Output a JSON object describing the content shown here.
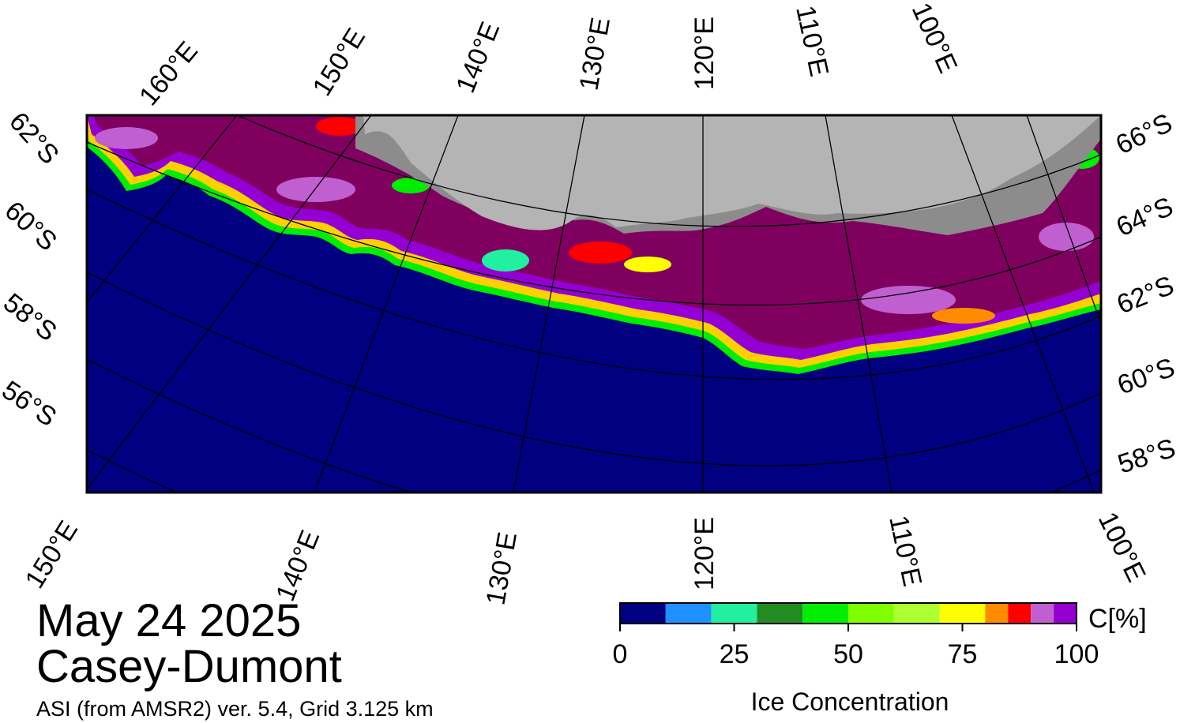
{
  "date": "May 24 2025",
  "region": "Casey-Dumont",
  "product": "ASI (from AMSR2) ver. 5.4,  Grid 3.125 km",
  "top_lon_labels": [
    "160°E",
    "150°E",
    "140°E",
    "130°E",
    "120°E",
    "110°E",
    "100°E"
  ],
  "bottom_lon_labels": [
    "150°E",
    "140°E",
    "130°E",
    "120°E",
    "110°E",
    "100°E"
  ],
  "left_lat_labels": [
    "62°S",
    "60°S",
    "58°S",
    "56°S"
  ],
  "right_lat_labels": [
    "66°S",
    "64°S",
    "62°S",
    "60°S",
    "58°S"
  ],
  "colorbar": {
    "title": "Ice Concentration",
    "unit": "C[%]",
    "ticks": [
      "0",
      "25",
      "50",
      "75",
      "100"
    ],
    "min": 0,
    "max": 100,
    "colors": [
      "#000080",
      "#1e90ff",
      "#20f0a0",
      "#228b22",
      "#00ee00",
      "#7fff00",
      "#adff2f",
      "#ffff00",
      "#ff8c00",
      "#ff0000",
      "#c060d0",
      "#9400d3"
    ]
  },
  "map_colors": {
    "ocean": "#000080",
    "land": "#b4b4b4",
    "ice_shelf": "#8c8c8c",
    "ice_pack": "#800060",
    "ice_mid": "#9400d3",
    "ice_edge": "#00ee00"
  }
}
